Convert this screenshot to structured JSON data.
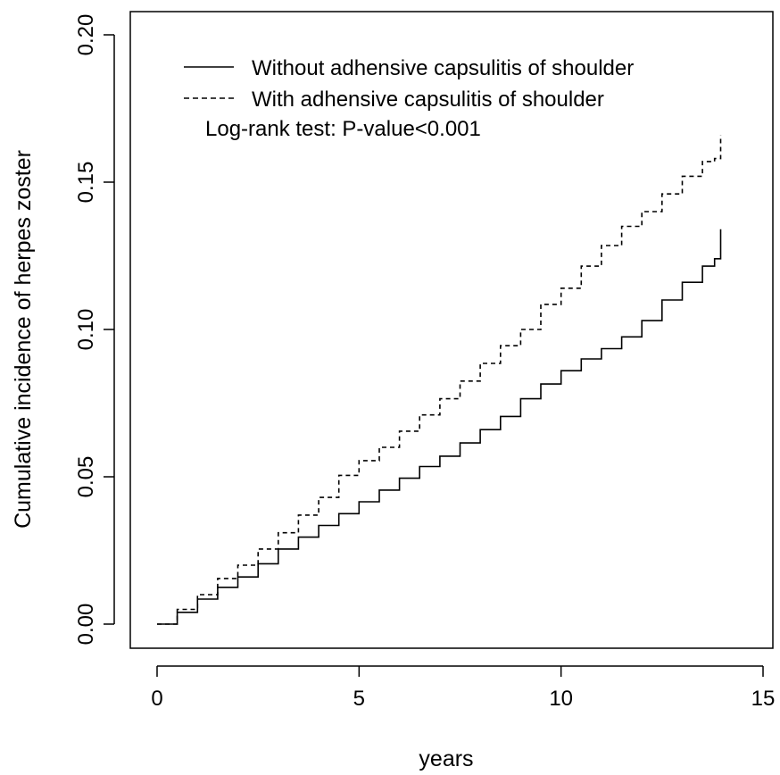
{
  "chart_data": {
    "type": "line",
    "step": true,
    "title": "",
    "xlabel": "years",
    "ylabel": "Cumulative incidence of herpes zoster",
    "xlim": [
      0,
      15
    ],
    "ylim": [
      0,
      0.2
    ],
    "x_ticks": [
      0,
      5,
      10,
      15
    ],
    "x_tick_labels": [
      "0",
      "5",
      "10",
      "15"
    ],
    "y_ticks": [
      0,
      0.05,
      0.1,
      0.15,
      0.2
    ],
    "y_tick_labels": [
      "0.00",
      "0.05",
      "0.10",
      "0.15",
      "0.20"
    ],
    "grid": false,
    "legend_position": "top-left",
    "series": [
      {
        "name": "Without adhensive capsulitis of shoulder",
        "line_style": "solid",
        "color": "#000000",
        "x": [
          0,
          0.5,
          1,
          1.5,
          2,
          2.5,
          3,
          3.5,
          4,
          4.5,
          5,
          5.5,
          6,
          6.5,
          7,
          7.5,
          8,
          8.5,
          9,
          9.5,
          10,
          10.5,
          11,
          11.5,
          12,
          12.5,
          13,
          13.5,
          13.8,
          13.95
        ],
        "y": [
          0,
          0.004,
          0.0085,
          0.0125,
          0.016,
          0.0205,
          0.0255,
          0.0295,
          0.0335,
          0.0375,
          0.0415,
          0.0455,
          0.0495,
          0.0535,
          0.057,
          0.0615,
          0.066,
          0.0705,
          0.0765,
          0.0815,
          0.086,
          0.09,
          0.0935,
          0.0975,
          0.103,
          0.11,
          0.116,
          0.1215,
          0.124,
          0.134
        ]
      },
      {
        "name": "With adhensive capsulitis of shoulder",
        "line_style": "dashed",
        "color": "#000000",
        "x": [
          0,
          0.5,
          1,
          1.5,
          2,
          2.5,
          3,
          3.5,
          4,
          4.5,
          5,
          5.5,
          6,
          6.5,
          7,
          7.5,
          8,
          8.5,
          9,
          9.5,
          10,
          10.5,
          11,
          11.5,
          12,
          12.5,
          13,
          13.5,
          13.8,
          13.95
        ],
        "y": [
          0,
          0.005,
          0.01,
          0.0155,
          0.02,
          0.0255,
          0.031,
          0.037,
          0.043,
          0.0505,
          0.0555,
          0.06,
          0.0655,
          0.071,
          0.0765,
          0.0825,
          0.0885,
          0.0945,
          0.1,
          0.1085,
          0.114,
          0.1215,
          0.1285,
          0.135,
          0.14,
          0.146,
          0.152,
          0.157,
          0.158,
          0.166
        ]
      }
    ],
    "annotations": [
      "Log-rank test: P-value<0.001"
    ]
  }
}
